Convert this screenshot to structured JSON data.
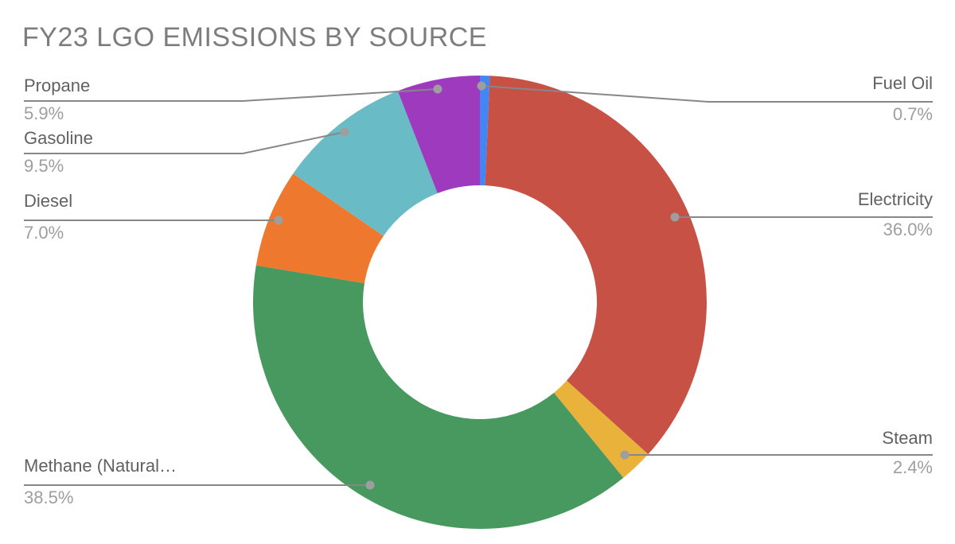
{
  "page": {
    "background": "#ffffff"
  },
  "chart_data": {
    "type": "pie",
    "subtype": "donut",
    "title": "FY23 LGO EMISSIONS BY SOURCE",
    "hole_ratio": 0.52,
    "start_angle_deg": 0,
    "direction": "clockwise",
    "value_unit": "percent",
    "labels_style": "outside-callouts-with-leader-lines",
    "slices": [
      {
        "label": "Fuel Oil",
        "value": 0.7,
        "pct_text": "0.7%",
        "color": "#4285F4",
        "side": "right"
      },
      {
        "label": "Electricity",
        "value": 36.0,
        "pct_text": "36.0%",
        "color": "#C85146",
        "side": "right"
      },
      {
        "label": "Steam",
        "value": 2.4,
        "pct_text": "2.4%",
        "color": "#E8B23B",
        "side": "right"
      },
      {
        "label": "Methane (Natural…",
        "value": 38.5,
        "pct_text": "38.5%",
        "color": "#48995F",
        "side": "left"
      },
      {
        "label": "Diesel",
        "value": 7.0,
        "pct_text": "7.0%",
        "color": "#ED782E",
        "side": "left"
      },
      {
        "label": "Gasoline",
        "value": 9.5,
        "pct_text": "9.5%",
        "color": "#69BCC5",
        "side": "left"
      },
      {
        "label": "Propane",
        "value": 5.9,
        "pct_text": "5.9%",
        "color": "#9E3ABD",
        "side": "left"
      }
    ],
    "colors": {
      "title_text": "#7D7D7D",
      "label_text": "#616161",
      "pct_text": "#9E9E9E",
      "leader_line": "#878787",
      "leader_dot": "#9E9E9E"
    }
  }
}
